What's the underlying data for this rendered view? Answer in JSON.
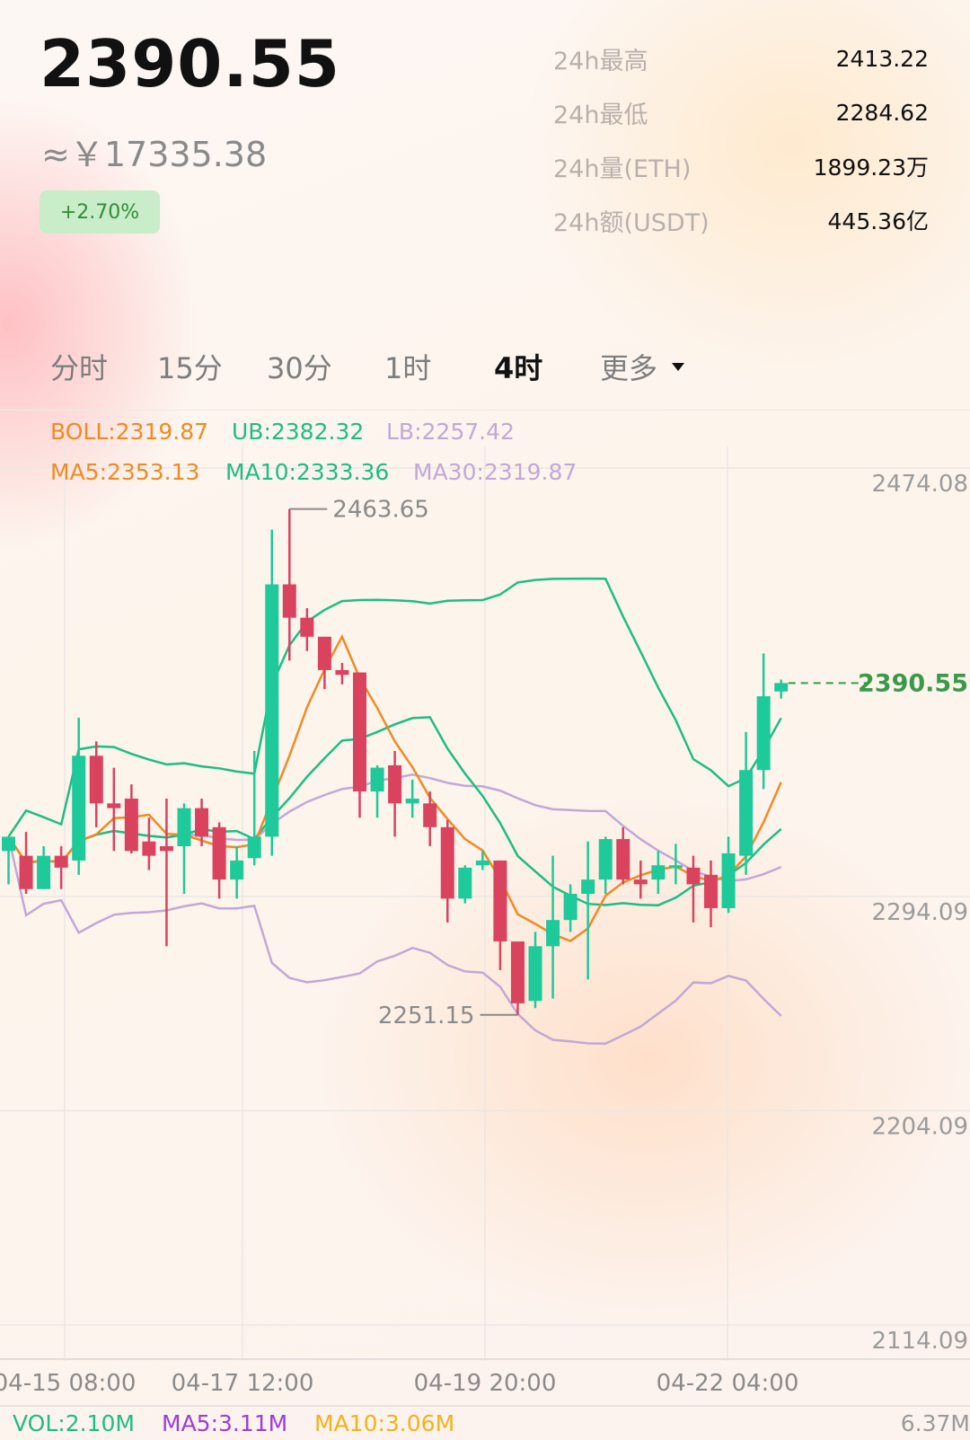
{
  "header": {
    "price": "2390.55",
    "approx_cny": "≈￥17335.38",
    "change_pct": "+2.70%",
    "stats": [
      {
        "label": "24h最高",
        "value": "2413.22"
      },
      {
        "label": "24h最低",
        "value": "2284.62"
      },
      {
        "label": "24h量(ETH)",
        "value": "1899.23万"
      },
      {
        "label": "24h额(USDT)",
        "value": "445.36亿"
      }
    ]
  },
  "tabs": [
    "分时",
    "15分",
    "30分",
    "1时",
    "4时",
    "更多"
  ],
  "active_tab": "4时",
  "indicators": {
    "boll": "BOLL:2319.87",
    "ub": "UB:2382.32",
    "lb": "LB:2257.42",
    "ma5": "MA5:2353.13",
    "ma10": "MA10:2333.36",
    "ma30": "MA30:2319.87"
  },
  "volume_bar": {
    "vol": "VOL:2.10M",
    "ma5": "MA5:3.11M",
    "ma10": "MA10:3.06M",
    "max": "6.37M"
  },
  "colors": {
    "up": "#1ec99a",
    "down": "#d9435e",
    "ma5": "#f08a24",
    "ma10": "#1ebd83",
    "ma30": "#c2a8d6",
    "current_price": "#3a9a4a"
  },
  "chart_data": {
    "type": "candlestick",
    "y_tick_labels": [
      "2474.08",
      "2294.09",
      "2204.09",
      "2114.09"
    ],
    "ylim": [
      2114.09,
      2474.08
    ],
    "x_tick_labels": [
      "04-15 08:00",
      "04-17 12:00",
      "04-19 20:00",
      "04-22 04:00"
    ],
    "annotations": {
      "high": "2463.65",
      "low": "2251.15",
      "current": "2390.55"
    },
    "candles": [
      {
        "o": 2320,
        "h": 2326,
        "l": 2306,
        "c": 2326
      },
      {
        "o": 2318,
        "h": 2328,
        "l": 2302,
        "c": 2304
      },
      {
        "o": 2304,
        "h": 2322,
        "l": 2304,
        "c": 2318
      },
      {
        "o": 2318,
        "h": 2322,
        "l": 2304,
        "c": 2313
      },
      {
        "o": 2316,
        "h": 2376,
        "l": 2310,
        "c": 2360
      },
      {
        "o": 2360,
        "h": 2366,
        "l": 2330,
        "c": 2340
      },
      {
        "o": 2340,
        "h": 2355,
        "l": 2320,
        "c": 2338
      },
      {
        "o": 2342,
        "h": 2348,
        "l": 2319,
        "c": 2320
      },
      {
        "o": 2324,
        "h": 2334,
        "l": 2312,
        "c": 2318
      },
      {
        "o": 2322,
        "h": 2342,
        "l": 2280,
        "c": 2320
      },
      {
        "o": 2322,
        "h": 2340,
        "l": 2302,
        "c": 2338
      },
      {
        "o": 2338,
        "h": 2342,
        "l": 2322,
        "c": 2326
      },
      {
        "o": 2330,
        "h": 2332,
        "l": 2300,
        "c": 2308
      },
      {
        "o": 2308,
        "h": 2322,
        "l": 2300,
        "c": 2316
      },
      {
        "o": 2317,
        "h": 2362,
        "l": 2314,
        "c": 2326
      },
      {
        "o": 2326,
        "h": 2455,
        "l": 2318,
        "c": 2432
      },
      {
        "o": 2432,
        "h": 2463.65,
        "l": 2400,
        "c": 2418
      },
      {
        "o": 2418,
        "h": 2422,
        "l": 2404,
        "c": 2410
      },
      {
        "o": 2410,
        "h": 2410,
        "l": 2388,
        "c": 2396
      },
      {
        "o": 2396,
        "h": 2399,
        "l": 2390,
        "c": 2394
      },
      {
        "o": 2395,
        "h": 2395,
        "l": 2334,
        "c": 2345
      },
      {
        "o": 2345,
        "h": 2356,
        "l": 2334,
        "c": 2355
      },
      {
        "o": 2356,
        "h": 2362,
        "l": 2326,
        "c": 2340
      },
      {
        "o": 2340,
        "h": 2350,
        "l": 2334,
        "c": 2342
      },
      {
        "o": 2340,
        "h": 2345,
        "l": 2322,
        "c": 2330
      },
      {
        "o": 2330,
        "h": 2333,
        "l": 2290,
        "c": 2300
      },
      {
        "o": 2300,
        "h": 2314,
        "l": 2298,
        "c": 2313
      },
      {
        "o": 2314,
        "h": 2320,
        "l": 2312,
        "c": 2316
      },
      {
        "o": 2316,
        "h": 2316,
        "l": 2270,
        "c": 2282
      },
      {
        "o": 2282,
        "h": 2282,
        "l": 2251.15,
        "c": 2256
      },
      {
        "o": 2257,
        "h": 2286,
        "l": 2254,
        "c": 2280
      },
      {
        "o": 2280,
        "h": 2318,
        "l": 2258,
        "c": 2291
      },
      {
        "o": 2291,
        "h": 2306,
        "l": 2286,
        "c": 2302
      },
      {
        "o": 2302,
        "h": 2324,
        "l": 2266,
        "c": 2308
      },
      {
        "o": 2308,
        "h": 2326,
        "l": 2302,
        "c": 2325
      },
      {
        "o": 2325,
        "h": 2330,
        "l": 2306,
        "c": 2308
      },
      {
        "o": 2308,
        "h": 2316,
        "l": 2300,
        "c": 2306
      },
      {
        "o": 2308,
        "h": 2320,
        "l": 2302,
        "c": 2314
      },
      {
        "o": 2313,
        "h": 2323,
        "l": 2306,
        "c": 2314
      },
      {
        "o": 2313,
        "h": 2318,
        "l": 2290,
        "c": 2306
      },
      {
        "o": 2310,
        "h": 2316,
        "l": 2288,
        "c": 2296
      },
      {
        "o": 2296,
        "h": 2326,
        "l": 2294,
        "c": 2319
      },
      {
        "o": 2318,
        "h": 2370,
        "l": 2310,
        "c": 2354
      },
      {
        "o": 2354,
        "h": 2403,
        "l": 2346,
        "c": 2385
      },
      {
        "o": 2387,
        "h": 2392,
        "l": 2384,
        "c": 2390.55
      }
    ]
  }
}
